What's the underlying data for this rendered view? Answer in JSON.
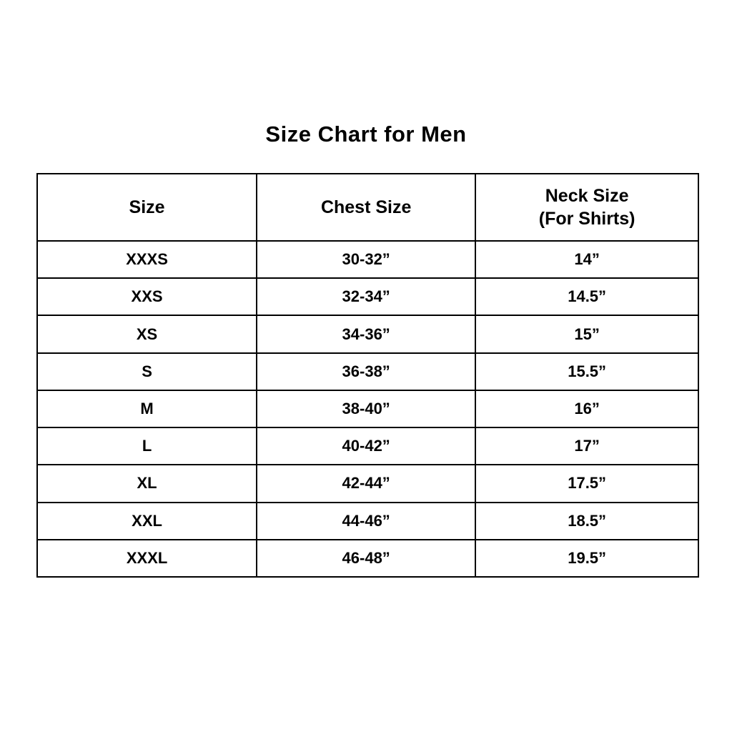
{
  "title": "Size Chart for Men",
  "table": {
    "headers": {
      "size": "Size",
      "chest": "Chest Size",
      "neck_line1": "Neck Size",
      "neck_line2": "(For Shirts)"
    },
    "rows": [
      [
        "XXXS",
        "30-32”",
        "14”"
      ],
      [
        "XXS",
        "32-34”",
        "14.5”"
      ],
      [
        "XS",
        "34-36”",
        "15”"
      ],
      [
        "S",
        "36-38”",
        "15.5”"
      ],
      [
        "M",
        "38-40”",
        "16”"
      ],
      [
        "L",
        "40-42”",
        "17”"
      ],
      [
        "XL",
        "42-44”",
        "17.5”"
      ],
      [
        "XXL",
        "44-46”",
        "18.5”"
      ],
      [
        "XXXL",
        "46-48”",
        "19.5”"
      ]
    ]
  },
  "chart_data": {
    "type": "table",
    "title": "Size Chart for Men",
    "columns": [
      "Size",
      "Chest Size",
      "Neck Size (For Shirts)"
    ],
    "rows": [
      {
        "size": "XXXS",
        "chest_size": "30-32\"",
        "neck_size": "14\""
      },
      {
        "size": "XXS",
        "chest_size": "32-34\"",
        "neck_size": "14.5\""
      },
      {
        "size": "XS",
        "chest_size": "34-36\"",
        "neck_size": "15\""
      },
      {
        "size": "S",
        "chest_size": "36-38\"",
        "neck_size": "15.5\""
      },
      {
        "size": "M",
        "chest_size": "38-40\"",
        "neck_size": "16\""
      },
      {
        "size": "L",
        "chest_size": "40-42\"",
        "neck_size": "17\""
      },
      {
        "size": "XL",
        "chest_size": "42-44\"",
        "neck_size": "17.5\""
      },
      {
        "size": "XXL",
        "chest_size": "44-46\"",
        "neck_size": "18.5\""
      },
      {
        "size": "XXXL",
        "chest_size": "46-48\"",
        "neck_size": "19.5\""
      }
    ],
    "layout": {
      "grid": true,
      "header_row": true,
      "text_align": "center"
    }
  }
}
